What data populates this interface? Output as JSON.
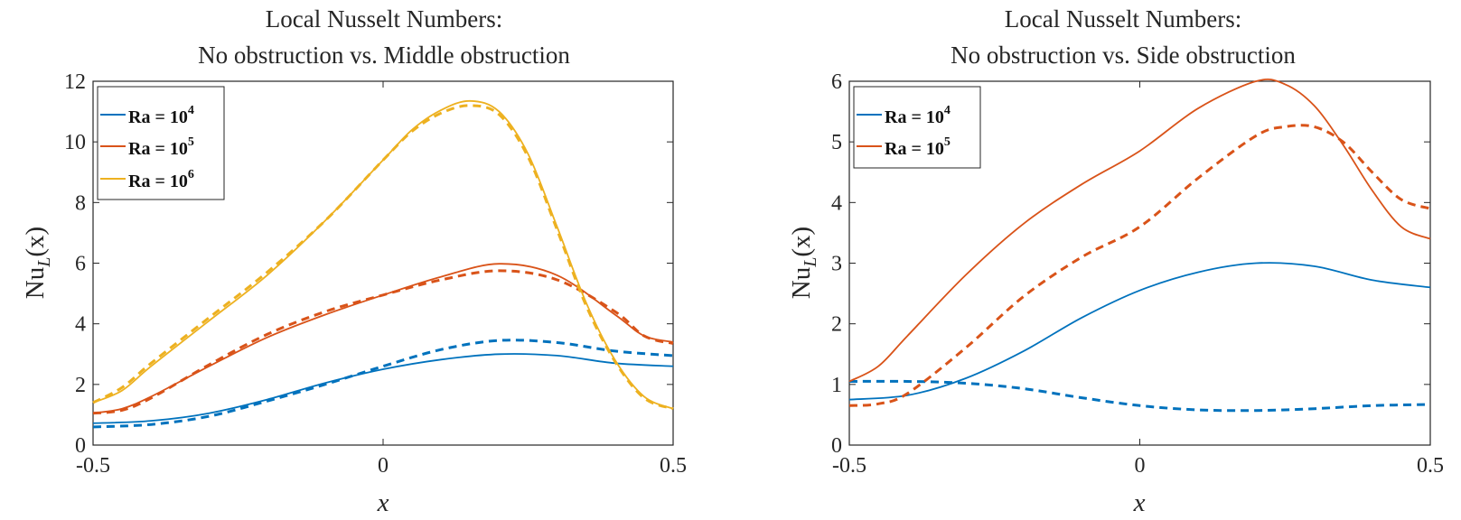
{
  "chart_data": [
    {
      "type": "line",
      "title_lines": [
        "Local Nusselt Numbers:",
        "No obstruction vs. Middle obstruction"
      ],
      "xlabel": "x",
      "ylabel_main": "Nu",
      "ylabel_sub": "L",
      "ylabel_arg": "(x)",
      "xlim": [
        -0.5,
        0.5
      ],
      "ylim": [
        0,
        12
      ],
      "xticks": [
        -0.5,
        0,
        0.5
      ],
      "xtick_labels": [
        "-0.5",
        "0",
        "0.5"
      ],
      "yticks": [
        0,
        2,
        4,
        6,
        8,
        10,
        12
      ],
      "ytick_labels": [
        "0",
        "2",
        "4",
        "6",
        "8",
        "10",
        "12"
      ],
      "legend_position": "top-left",
      "series": [
        {
          "name": "Ra = 10^4",
          "legend_base": "Ra = 10",
          "legend_exp": "4",
          "color": "#0072BD",
          "style": "solid",
          "x": [
            -0.5,
            -0.4,
            -0.3,
            -0.2,
            -0.1,
            0,
            0.1,
            0.2,
            0.3,
            0.4,
            0.5
          ],
          "y": [
            0.72,
            0.8,
            1.05,
            1.5,
            2.05,
            2.5,
            2.82,
            3.0,
            2.95,
            2.7,
            2.6
          ]
        },
        {
          "name": "Ra = 10^4 (obstruction)",
          "color": "#0072BD",
          "style": "dashed",
          "x": [
            -0.5,
            -0.4,
            -0.3,
            -0.2,
            -0.1,
            0,
            0.1,
            0.2,
            0.3,
            0.4,
            0.5
          ],
          "y": [
            0.6,
            0.68,
            0.95,
            1.45,
            2.0,
            2.6,
            3.15,
            3.45,
            3.38,
            3.1,
            2.95
          ]
        },
        {
          "name": "Ra = 10^5",
          "legend_base": "Ra = 10",
          "legend_exp": "5",
          "color": "#D95319",
          "style": "solid",
          "x": [
            -0.5,
            -0.45,
            -0.4,
            -0.3,
            -0.2,
            -0.1,
            0,
            0.1,
            0.2,
            0.3,
            0.4,
            0.45,
            0.5
          ],
          "y": [
            1.05,
            1.2,
            1.6,
            2.6,
            3.55,
            4.3,
            4.95,
            5.55,
            5.98,
            5.6,
            4.3,
            3.6,
            3.4
          ]
        },
        {
          "name": "Ra = 10^5 (obstruction)",
          "color": "#D95319",
          "style": "dashed",
          "x": [
            -0.5,
            -0.45,
            -0.4,
            -0.3,
            -0.2,
            -0.1,
            0,
            0.1,
            0.2,
            0.3,
            0.4,
            0.45,
            0.5
          ],
          "y": [
            1.05,
            1.15,
            1.55,
            2.65,
            3.65,
            4.4,
            4.95,
            5.45,
            5.75,
            5.45,
            4.4,
            3.6,
            3.35
          ]
        },
        {
          "name": "Ra = 10^6",
          "legend_base": "Ra = 10",
          "legend_exp": "6",
          "color": "#EDB120",
          "style": "solid",
          "x": [
            -0.5,
            -0.45,
            -0.4,
            -0.3,
            -0.2,
            -0.1,
            0,
            0.05,
            0.1,
            0.15,
            0.2,
            0.25,
            0.3,
            0.35,
            0.4,
            0.45,
            0.5
          ],
          "y": [
            1.4,
            1.8,
            2.6,
            4.1,
            5.6,
            7.4,
            9.4,
            10.4,
            11.05,
            11.35,
            11.0,
            9.6,
            7.2,
            4.7,
            2.8,
            1.6,
            1.2
          ]
        },
        {
          "name": "Ra = 10^6 (obstruction)",
          "color": "#EDB120",
          "style": "dashed",
          "x": [
            -0.5,
            -0.45,
            -0.4,
            -0.3,
            -0.2,
            -0.1,
            0,
            0.05,
            0.1,
            0.15,
            0.2,
            0.25,
            0.3,
            0.35,
            0.4,
            0.45,
            0.5
          ],
          "y": [
            1.4,
            1.9,
            2.7,
            4.2,
            5.7,
            7.4,
            9.4,
            10.35,
            10.95,
            11.2,
            10.9,
            9.5,
            7.1,
            4.6,
            2.75,
            1.55,
            1.2
          ]
        }
      ]
    },
    {
      "type": "line",
      "title_lines": [
        "Local Nusselt Numbers:",
        "No obstruction vs. Side obstruction"
      ],
      "xlabel": "x",
      "ylabel_main": "Nu",
      "ylabel_sub": "L",
      "ylabel_arg": "(x)",
      "xlim": [
        -0.5,
        0.5
      ],
      "ylim": [
        0,
        6
      ],
      "xticks": [
        -0.5,
        0,
        0.5
      ],
      "xtick_labels": [
        "-0.5",
        "0",
        "0.5"
      ],
      "yticks": [
        0,
        1,
        2,
        3,
        4,
        5,
        6
      ],
      "ytick_labels": [
        "0",
        "1",
        "2",
        "3",
        "4",
        "5",
        "6"
      ],
      "legend_position": "top-left",
      "series": [
        {
          "name": "Ra = 10^4",
          "legend_base": "Ra = 10",
          "legend_exp": "4",
          "color": "#0072BD",
          "style": "solid",
          "x": [
            -0.5,
            -0.4,
            -0.3,
            -0.2,
            -0.1,
            0,
            0.1,
            0.2,
            0.3,
            0.4,
            0.5
          ],
          "y": [
            0.75,
            0.82,
            1.1,
            1.55,
            2.1,
            2.55,
            2.85,
            3.0,
            2.95,
            2.72,
            2.6
          ]
        },
        {
          "name": "Ra = 10^4 (obstruction)",
          "color": "#0072BD",
          "style": "dashed",
          "x": [
            -0.5,
            -0.4,
            -0.3,
            -0.2,
            -0.1,
            0,
            0.1,
            0.2,
            0.3,
            0.4,
            0.5
          ],
          "y": [
            1.05,
            1.05,
            1.02,
            0.93,
            0.78,
            0.65,
            0.58,
            0.57,
            0.6,
            0.65,
            0.67
          ]
        },
        {
          "name": "Ra = 10^5",
          "legend_base": "Ra = 10",
          "legend_exp": "5",
          "color": "#D95319",
          "style": "solid",
          "x": [
            -0.5,
            -0.45,
            -0.4,
            -0.3,
            -0.2,
            -0.1,
            0,
            0.1,
            0.2,
            0.25,
            0.3,
            0.35,
            0.4,
            0.45,
            0.5
          ],
          "y": [
            1.05,
            1.3,
            1.8,
            2.8,
            3.65,
            4.3,
            4.85,
            5.55,
            6.0,
            5.95,
            5.6,
            4.95,
            4.2,
            3.6,
            3.4
          ]
        },
        {
          "name": "Ra = 10^5 (obstruction)",
          "color": "#D95319",
          "style": "dashed",
          "x": [
            -0.5,
            -0.45,
            -0.4,
            -0.3,
            -0.2,
            -0.1,
            0,
            0.1,
            0.2,
            0.25,
            0.3,
            0.35,
            0.4,
            0.45,
            0.5
          ],
          "y": [
            0.65,
            0.68,
            0.85,
            1.6,
            2.45,
            3.1,
            3.6,
            4.4,
            5.1,
            5.25,
            5.25,
            5.0,
            4.5,
            4.05,
            3.9
          ]
        }
      ]
    }
  ]
}
